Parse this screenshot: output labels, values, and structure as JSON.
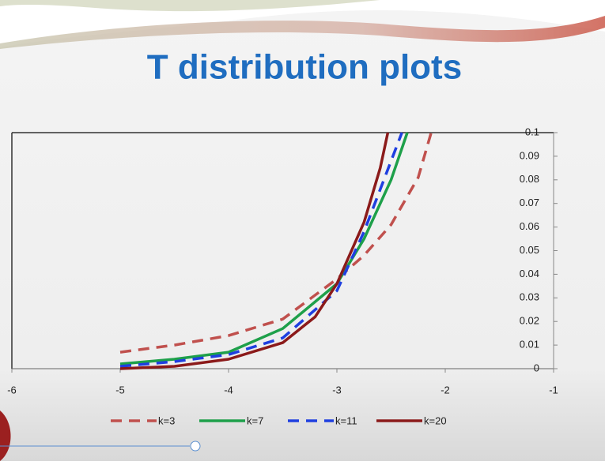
{
  "chart_data": {
    "type": "line",
    "title": "T distribution plots",
    "xlim": [
      -6,
      -1
    ],
    "xticks": [
      -6,
      -5,
      -4,
      -3,
      -2,
      -1
    ],
    "ylim": [
      0,
      0.1
    ],
    "yticks": [
      0,
      0.01,
      0.02,
      0.03,
      0.04,
      0.05,
      0.06,
      0.07,
      0.08,
      0.09,
      0.1
    ],
    "series": [
      {
        "name": "k=3",
        "color": "#c0504d",
        "dashed": true,
        "x": [
          -5,
          -4.5,
          -4,
          -3.5,
          -3,
          -2.75,
          -2.5,
          -2.25,
          -2.13
        ],
        "values": [
          0.007,
          0.01,
          0.014,
          0.021,
          0.038,
          0.048,
          0.061,
          0.081,
          0.1
        ]
      },
      {
        "name": "k=7",
        "color": "#1ea04a",
        "dashed": false,
        "x": [
          -5,
          -4.5,
          -4,
          -3.5,
          -3,
          -2.75,
          -2.5,
          -2.35
        ],
        "values": [
          0.002,
          0.004,
          0.007,
          0.017,
          0.036,
          0.055,
          0.08,
          0.1
        ]
      },
      {
        "name": "k=11",
        "color": "#1f3fe0",
        "dashed": true,
        "x": [
          -5,
          -4.5,
          -4,
          -3.5,
          -3,
          -2.75,
          -2.5,
          -2.4
        ],
        "values": [
          0.001,
          0.003,
          0.006,
          0.013,
          0.033,
          0.058,
          0.088,
          0.1
        ]
      },
      {
        "name": "k=20",
        "color": "#8b1a1a",
        "dashed": false,
        "x": [
          -5,
          -4.5,
          -4,
          -3.5,
          -3.2,
          -3,
          -2.75,
          -2.6,
          -2.53
        ],
        "values": [
          0,
          0.001,
          0.004,
          0.011,
          0.022,
          0.036,
          0.062,
          0.085,
          0.1
        ]
      }
    ]
  }
}
